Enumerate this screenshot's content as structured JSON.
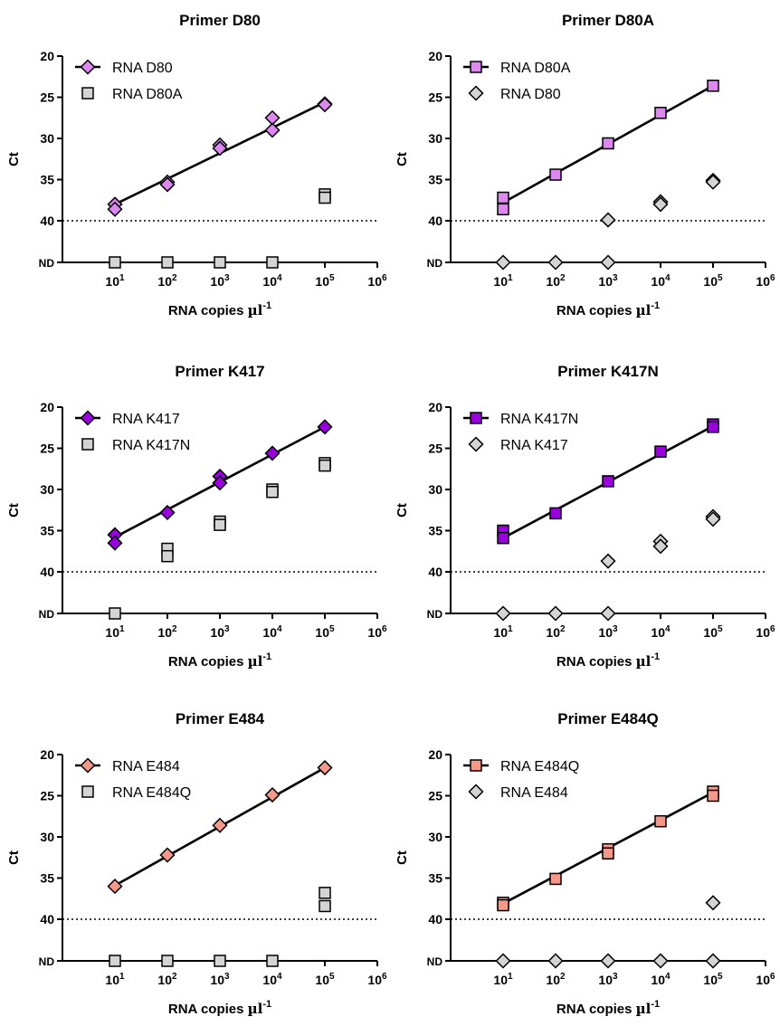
{
  "chart_data": [
    {
      "type": "scatter",
      "title": "Primer D80",
      "xlabel": "RNA copies",
      "xlabel_unit_base": "µl",
      "xlabel_unit_exp": "-1",
      "ylabel": "Ct",
      "x_scale": "log10",
      "xlim": [
        1,
        1000000
      ],
      "ylim": [
        20,
        45
      ],
      "y_inverted": true,
      "ytick_labels": [
        "20",
        "25",
        "30",
        "35",
        "40",
        "ND"
      ],
      "xtick_labels": [
        "10^1",
        "10^2",
        "10^3",
        "10^4",
        "10^5",
        "10^6"
      ],
      "detection_limit": 40,
      "nd_value": "ND",
      "legend_position": "top-left",
      "series": [
        {
          "name": "RNA D80",
          "marker": "diamond",
          "color": "#dd88ee",
          "fit_line": true,
          "x": [
            10,
            10,
            100,
            100,
            1000,
            1000,
            10000,
            10000,
            100000,
            100000
          ],
          "y": [
            38.0,
            38.6,
            35.3,
            35.6,
            30.8,
            31.2,
            27.5,
            29.0,
            25.8,
            25.9
          ],
          "fit": {
            "x": [
              10,
              100000
            ],
            "y": [
              38.0,
              25.6
            ]
          }
        },
        {
          "name": "RNA D80A",
          "marker": "square",
          "color": "#d4d4d4",
          "fit_line": false,
          "x": [
            10,
            100,
            1000,
            10000,
            100000,
            100000
          ],
          "y": [
            "ND",
            "ND",
            "ND",
            "ND",
            36.8,
            37.2
          ]
        }
      ]
    },
    {
      "type": "scatter",
      "title": "Primer D80A",
      "xlabel": "RNA copies",
      "xlabel_unit_base": "µl",
      "xlabel_unit_exp": "-1",
      "ylabel": "Ct",
      "x_scale": "log10",
      "xlim": [
        1,
        1000000
      ],
      "ylim": [
        20,
        45
      ],
      "y_inverted": true,
      "ytick_labels": [
        "20",
        "25",
        "30",
        "35",
        "40",
        "ND"
      ],
      "xtick_labels": [
        "10^1",
        "10^2",
        "10^3",
        "10^4",
        "10^5",
        "10^6"
      ],
      "detection_limit": 40,
      "nd_value": "ND",
      "legend_position": "top-left",
      "series": [
        {
          "name": "RNA D80A",
          "marker": "square",
          "color": "#dd88ee",
          "fit_line": true,
          "x": [
            10,
            10,
            100,
            1000,
            10000,
            100000
          ],
          "y": [
            37.2,
            38.6,
            34.4,
            30.6,
            26.9,
            23.6
          ],
          "fit": {
            "x": [
              10,
              100000
            ],
            "y": [
              37.8,
              23.6
            ]
          }
        },
        {
          "name": "RNA D80",
          "marker": "diamond",
          "color": "#d4d4d4",
          "fit_line": false,
          "x": [
            10,
            100,
            1000,
            1000,
            10000,
            10000,
            100000,
            100000
          ],
          "y": [
            "ND",
            "ND",
            "ND",
            39.9,
            37.7,
            38.0,
            35.1,
            35.3
          ]
        }
      ]
    },
    {
      "type": "scatter",
      "title": "Primer K417",
      "xlabel": "RNA copies",
      "xlabel_unit_base": "µl",
      "xlabel_unit_exp": "-1",
      "ylabel": "Ct",
      "x_scale": "log10",
      "xlim": [
        1,
        1000000
      ],
      "ylim": [
        20,
        45
      ],
      "y_inverted": true,
      "ytick_labels": [
        "20",
        "25",
        "30",
        "35",
        "40",
        "ND"
      ],
      "xtick_labels": [
        "10^1",
        "10^2",
        "10^3",
        "10^4",
        "10^5",
        "10^6"
      ],
      "detection_limit": 40,
      "nd_value": "ND",
      "legend_position": "top-left",
      "series": [
        {
          "name": "RNA K417",
          "marker": "diamond",
          "color": "#9900dd",
          "fit_line": true,
          "x": [
            10,
            10,
            100,
            1000,
            1000,
            10000,
            100000
          ],
          "y": [
            35.5,
            36.5,
            32.8,
            28.4,
            29.2,
            25.6,
            22.4
          ],
          "fit": {
            "x": [
              10,
              100000
            ],
            "y": [
              35.8,
              22.4
            ]
          }
        },
        {
          "name": "RNA K417N",
          "marker": "square",
          "color": "#d4d4d4",
          "fit_line": false,
          "x": [
            10,
            100,
            100,
            1000,
            1000,
            10000,
            10000,
            100000,
            100000
          ],
          "y": [
            "ND",
            37.2,
            38.1,
            33.9,
            34.3,
            30.0,
            30.3,
            26.8,
            27.1
          ]
        }
      ]
    },
    {
      "type": "scatter",
      "title": "Primer K417N",
      "xlabel": "RNA copies",
      "xlabel_unit_base": "µl",
      "xlabel_unit_exp": "-1",
      "ylabel": "Ct",
      "x_scale": "log10",
      "xlim": [
        1,
        1000000
      ],
      "ylim": [
        20,
        45
      ],
      "y_inverted": true,
      "ytick_labels": [
        "20",
        "25",
        "30",
        "35",
        "40",
        "ND"
      ],
      "xtick_labels": [
        "10^1",
        "10^2",
        "10^3",
        "10^4",
        "10^5",
        "10^6"
      ],
      "detection_limit": 40,
      "nd_value": "ND",
      "legend_position": "top-left",
      "series": [
        {
          "name": "RNA K417N",
          "marker": "square",
          "color": "#9900dd",
          "fit_line": true,
          "x": [
            10,
            10,
            100,
            1000,
            10000,
            100000,
            100000
          ],
          "y": [
            35.0,
            35.9,
            32.9,
            29.0,
            25.4,
            22.1,
            22.4
          ],
          "fit": {
            "x": [
              10,
              100000
            ],
            "y": [
              35.9,
              22.3
            ]
          }
        },
        {
          "name": "RNA K417",
          "marker": "diamond",
          "color": "#d4d4d4",
          "fit_line": false,
          "x": [
            10,
            100,
            1000,
            1000,
            10000,
            10000,
            100000,
            100000
          ],
          "y": [
            "ND",
            "ND",
            "ND",
            38.7,
            36.3,
            36.9,
            33.3,
            33.6
          ]
        }
      ]
    },
    {
      "type": "scatter",
      "title": "Primer E484",
      "xlabel": "RNA copies",
      "xlabel_unit_base": "µl",
      "xlabel_unit_exp": "-1",
      "ylabel": "Ct",
      "x_scale": "log10",
      "xlim": [
        1,
        1000000
      ],
      "ylim": [
        20,
        45
      ],
      "y_inverted": true,
      "ytick_labels": [
        "20",
        "25",
        "30",
        "35",
        "40",
        "ND"
      ],
      "xtick_labels": [
        "10^1",
        "10^2",
        "10^3",
        "10^4",
        "10^5",
        "10^6"
      ],
      "detection_limit": 40,
      "nd_value": "ND",
      "legend_position": "top-left",
      "series": [
        {
          "name": "RNA E484",
          "marker": "diamond",
          "color": "#f4998a",
          "fit_line": true,
          "x": [
            10,
            100,
            1000,
            10000,
            100000
          ],
          "y": [
            36.0,
            32.2,
            28.6,
            24.9,
            21.6
          ],
          "fit": {
            "x": [
              10,
              100000
            ],
            "y": [
              35.9,
              21.6
            ]
          }
        },
        {
          "name": "RNA E484Q",
          "marker": "square",
          "color": "#d4d4d4",
          "fit_line": false,
          "x": [
            10,
            100,
            1000,
            10000,
            100000,
            100000
          ],
          "y": [
            "ND",
            "ND",
            "ND",
            "ND",
            36.8,
            38.4
          ]
        }
      ]
    },
    {
      "type": "scatter",
      "title": "Primer E484Q",
      "xlabel": "RNA copies",
      "xlabel_unit_base": "µl",
      "xlabel_unit_exp": "-1",
      "ylabel": "Ct",
      "x_scale": "log10",
      "xlim": [
        1,
        1000000
      ],
      "ylim": [
        20,
        45
      ],
      "y_inverted": true,
      "ytick_labels": [
        "20",
        "25",
        "30",
        "35",
        "40",
        "ND"
      ],
      "xtick_labels": [
        "10^1",
        "10^2",
        "10^3",
        "10^4",
        "10^5",
        "10^6"
      ],
      "detection_limit": 40,
      "nd_value": "ND",
      "legend_position": "top-left",
      "series": [
        {
          "name": "RNA E484Q",
          "marker": "square",
          "color": "#f4998a",
          "fit_line": true,
          "x": [
            10,
            10,
            100,
            1000,
            1000,
            10000,
            100000,
            100000
          ],
          "y": [
            38.0,
            38.3,
            35.1,
            31.5,
            32.0,
            28.1,
            24.5,
            25.0
          ],
          "fit": {
            "x": [
              10,
              100000
            ],
            "y": [
              38.1,
              24.6
            ]
          }
        },
        {
          "name": "RNA E484",
          "marker": "diamond",
          "color": "#d4d4d4",
          "fit_line": false,
          "x": [
            10,
            100,
            1000,
            10000,
            100000,
            100000
          ],
          "y": [
            "ND",
            "ND",
            "ND",
            "ND",
            "ND",
            38.0
          ]
        }
      ]
    }
  ]
}
